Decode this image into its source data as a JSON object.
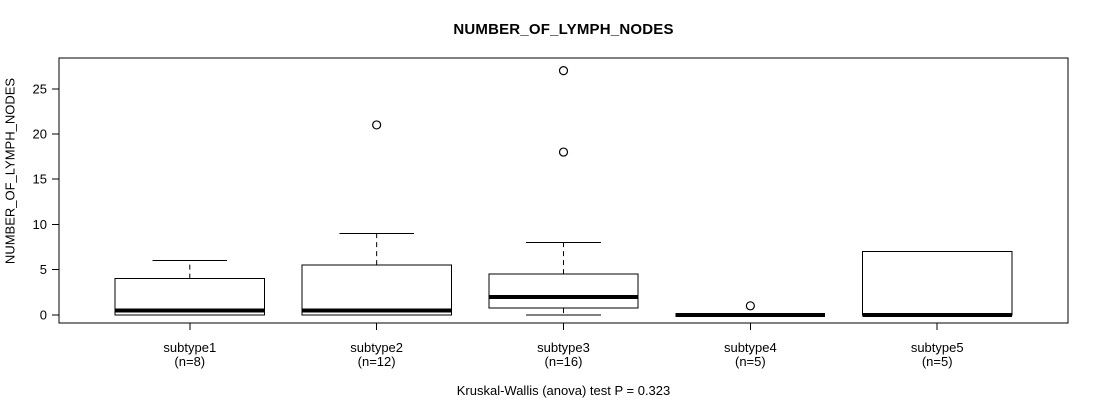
{
  "chart_data": {
    "type": "boxplot",
    "title": "NUMBER_OF_LYMPH_NODES",
    "ylabel": "NUMBER_OF_LYMPH_NODES",
    "footer": "Kruskal-Wallis (anova) test P = 0.323",
    "yticks": [
      0,
      5,
      10,
      15,
      20,
      25
    ],
    "ylim": [
      -0.9,
      28.4
    ],
    "xlim": [
      0.3,
      5.7
    ],
    "grid": false,
    "legend": "none",
    "box_half_width": 0.4,
    "cap_half_width": 0.2,
    "colors": {
      "line": "#000000",
      "box_fill": "#ffffff"
    },
    "groups": [
      {
        "label": "subtype1",
        "sublabel": "(n=8)",
        "pos": 1,
        "low": 0,
        "q1": 0,
        "median": 0.5,
        "q3": 4,
        "high": 6,
        "outliers": []
      },
      {
        "label": "subtype2",
        "sublabel": "(n=12)",
        "pos": 2,
        "low": 0,
        "q1": 0,
        "median": 0.5,
        "q3": 5.5,
        "high": 9,
        "outliers": [
          21
        ]
      },
      {
        "label": "subtype3",
        "sublabel": "(n=16)",
        "pos": 3,
        "low": 0,
        "q1": 0.75,
        "median": 2,
        "q3": 4.5,
        "high": 8,
        "outliers": [
          18,
          27
        ]
      },
      {
        "label": "subtype4",
        "sublabel": "(n=5)",
        "pos": 4,
        "low": 0,
        "q1": 0,
        "median": 0,
        "q3": 0,
        "high": 0,
        "outliers": [
          1
        ]
      },
      {
        "label": "subtype5",
        "sublabel": "(n=5)",
        "pos": 5,
        "low": 0,
        "q1": 0,
        "median": 0,
        "q3": 7,
        "high": 7,
        "outliers": []
      }
    ]
  }
}
